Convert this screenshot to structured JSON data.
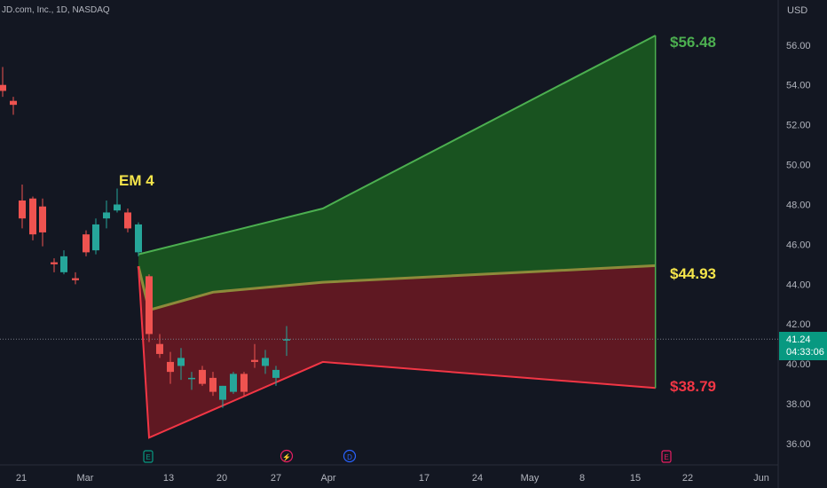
{
  "header": {
    "ticker_line": "JD.com, Inc., 1D, NASDAQ",
    "currency": "USD"
  },
  "last_price": {
    "value": "41.24",
    "countdown": "04:33:06",
    "color": "#089981"
  },
  "annotations": {
    "em_label": "EM 4",
    "em_color": "#f5e54b",
    "upper_target": "$56.48",
    "upper_color": "#4caf50",
    "mid_target": "$44.93",
    "mid_color": "#f5e54b",
    "lower_target": "$38.79",
    "lower_color": "#f23645"
  },
  "event_markers": [
    {
      "symbol": "E",
      "icon": "earnings-icon",
      "x_label": "Mar 9",
      "color": "#089981"
    },
    {
      "symbol": "⚡",
      "icon": "split-icon",
      "x_label": "Mar 28",
      "color": "#e91e63"
    },
    {
      "symbol": "D",
      "icon": "dividend-icon",
      "x_label": "Apr 3",
      "color": "#2962ff"
    },
    {
      "symbol": "E",
      "icon": "earnings-icon",
      "x_label": "May 19",
      "color": "#e91e63"
    }
  ],
  "chart_data": {
    "type": "candlestick",
    "title": "JD.com, Inc., 1D, NASDAQ",
    "ylabel": "USD",
    "ylim": [
      35.3,
      59.3
    ],
    "y_ticks": [
      "36.00",
      "38.00",
      "40.00",
      "42.00",
      "44.00",
      "46.00",
      "48.00",
      "50.00",
      "52.00",
      "54.00",
      "56.00"
    ],
    "x_ticks": [
      "21",
      "Mar",
      "13",
      "20",
      "27",
      "Apr",
      "17",
      "24",
      "May",
      "8",
      "15",
      "22",
      "Jun"
    ],
    "candles": [
      {
        "date": "Feb 16",
        "open": 54.0,
        "high": 54.9,
        "low": 53.4,
        "close": 53.7
      },
      {
        "date": "Feb 17",
        "open": 53.2,
        "high": 53.4,
        "low": 52.5,
        "close": 53.0
      },
      {
        "date": "Feb 22",
        "open": 48.2,
        "high": 49.0,
        "low": 46.8,
        "close": 47.3
      },
      {
        "date": "Feb 23",
        "open": 48.3,
        "high": 48.4,
        "low": 46.2,
        "close": 46.5
      },
      {
        "date": "Feb 24",
        "open": 47.9,
        "high": 48.3,
        "low": 45.9,
        "close": 46.6
      },
      {
        "date": "Feb 27",
        "open": 45.1,
        "high": 45.3,
        "low": 44.6,
        "close": 45.0
      },
      {
        "date": "Feb 28",
        "open": 44.6,
        "high": 45.7,
        "low": 44.5,
        "close": 45.4
      },
      {
        "date": "Mar 1",
        "open": 44.3,
        "high": 44.6,
        "low": 44.0,
        "close": 44.2
      },
      {
        "date": "Mar 2",
        "open": 46.5,
        "high": 46.7,
        "low": 45.4,
        "close": 45.6
      },
      {
        "date": "Mar 3",
        "open": 45.7,
        "high": 47.3,
        "low": 45.5,
        "close": 47.0
      },
      {
        "date": "Mar 6",
        "open": 47.3,
        "high": 48.2,
        "low": 46.8,
        "close": 47.6
      },
      {
        "date": "Mar 7",
        "open": 47.7,
        "high": 48.8,
        "low": 47.6,
        "close": 48.0
      },
      {
        "date": "Mar 8",
        "open": 47.6,
        "high": 47.8,
        "low": 46.6,
        "close": 46.8
      },
      {
        "date": "Mar 9",
        "open": 45.6,
        "high": 47.1,
        "low": 45.4,
        "close": 47.0
      },
      {
        "date": "Mar 10",
        "open": 44.4,
        "high": 44.5,
        "low": 41.1,
        "close": 41.5
      },
      {
        "date": "Mar 13",
        "open": 41.0,
        "high": 41.5,
        "low": 40.3,
        "close": 40.5
      },
      {
        "date": "Mar 14",
        "open": 40.1,
        "high": 40.6,
        "low": 39.0,
        "close": 39.6
      },
      {
        "date": "Mar 15",
        "open": 39.9,
        "high": 40.8,
        "low": 39.2,
        "close": 40.3
      },
      {
        "date": "Mar 16",
        "open": 39.3,
        "high": 39.6,
        "low": 38.7,
        "close": 39.3
      },
      {
        "date": "Mar 17",
        "open": 39.7,
        "high": 39.9,
        "low": 38.9,
        "close": 39.0
      },
      {
        "date": "Mar 20",
        "open": 39.3,
        "high": 39.6,
        "low": 38.4,
        "close": 38.6
      },
      {
        "date": "Mar 21",
        "open": 38.2,
        "high": 38.9,
        "low": 37.8,
        "close": 38.9
      },
      {
        "date": "Mar 22",
        "open": 38.6,
        "high": 39.6,
        "low": 38.5,
        "close": 39.5
      },
      {
        "date": "Mar 23",
        "open": 39.5,
        "high": 39.6,
        "low": 38.4,
        "close": 38.6
      },
      {
        "date": "Mar 24",
        "open": 40.2,
        "high": 41.0,
        "low": 39.8,
        "close": 40.1
      },
      {
        "date": "Mar 27",
        "open": 39.9,
        "high": 40.7,
        "low": 39.5,
        "close": 40.3
      },
      {
        "date": "Mar 28",
        "open": 39.3,
        "high": 39.9,
        "low": 38.9,
        "close": 39.7
      },
      {
        "date": "Mar 29",
        "open": 41.2,
        "high": 41.9,
        "low": 40.4,
        "close": 41.24
      }
    ],
    "expected_move_bands": {
      "upper": [
        {
          "date": "Mar 9",
          "value": 45.5
        },
        {
          "date": "Apr 3",
          "value": 47.8
        },
        {
          "date": "May 19",
          "value": 56.48
        }
      ],
      "middle": [
        {
          "date": "Mar 9",
          "value": 44.9
        },
        {
          "date": "Mar 10",
          "value": 42.7
        },
        {
          "date": "Mar 20",
          "value": 43.6
        },
        {
          "date": "Apr 3",
          "value": 44.1
        },
        {
          "date": "May 19",
          "value": 44.93
        }
      ],
      "lower": [
        {
          "date": "Mar 9",
          "value": 44.9
        },
        {
          "date": "Mar 10",
          "value": 36.3
        },
        {
          "date": "Apr 3",
          "value": 40.1
        },
        {
          "date": "May 19",
          "value": 38.79
        }
      ]
    },
    "current_price": 41.24,
    "grid": false
  }
}
